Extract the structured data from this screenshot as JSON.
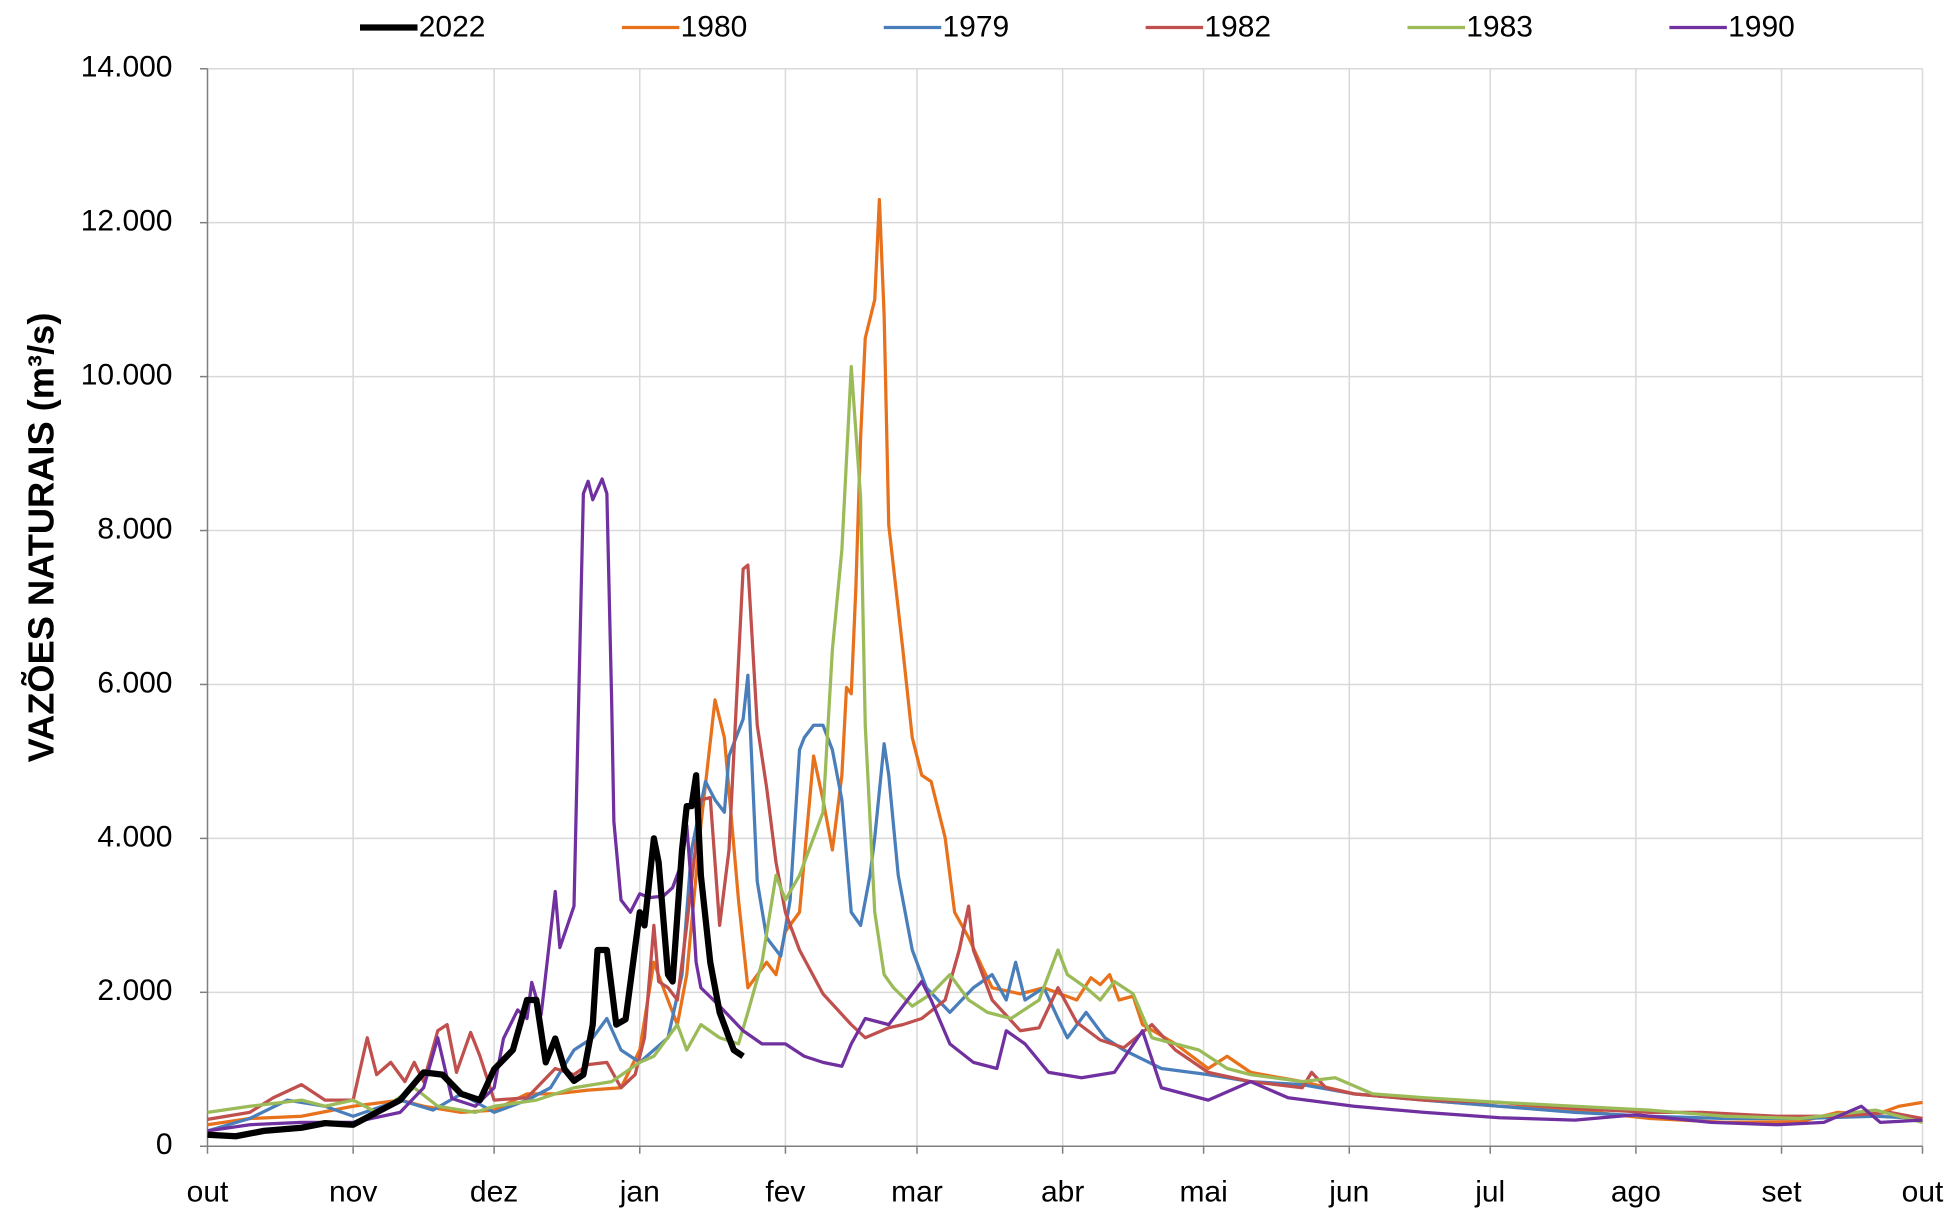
{
  "chart_data": {
    "type": "line",
    "ylabel": "VAZÕES NATURAIS (m³/s)",
    "legend": "top",
    "grid": true,
    "xlim": [
      0,
      365
    ],
    "xticks": [
      {
        "value": 0,
        "label": "out"
      },
      {
        "value": 31,
        "label": "nov"
      },
      {
        "value": 61,
        "label": "dez"
      },
      {
        "value": 92,
        "label": "jan"
      },
      {
        "value": 123,
        "label": "fev"
      },
      {
        "value": 151,
        "label": "mar"
      },
      {
        "value": 182,
        "label": "abr"
      },
      {
        "value": 212,
        "label": "mai"
      },
      {
        "value": 243,
        "label": "jun"
      },
      {
        "value": 273,
        "label": "jul"
      },
      {
        "value": 304,
        "label": "ago"
      },
      {
        "value": 335,
        "label": "set"
      },
      {
        "value": 365,
        "label": "out"
      }
    ],
    "ylim": [
      0,
      14000
    ],
    "yticks": [
      0,
      {
        "value": 2000,
        "label": "2.000"
      },
      {
        "value": 4000,
        "label": "4.000"
      },
      {
        "value": 6000,
        "label": "6.000"
      },
      {
        "value": 8000,
        "label": "8.000"
      },
      {
        "value": 10000,
        "label": "10.000"
      },
      {
        "value": 12000,
        "label": "12.000"
      },
      {
        "value": 14000,
        "label": "14.000"
      }
    ],
    "series": [
      {
        "name": "2022",
        "color": "#000000",
        "line_width": 5,
        "x": [
          0,
          6,
          12,
          20,
          25,
          31,
          36,
          41,
          46,
          50,
          54,
          58,
          61,
          65,
          68,
          70,
          72,
          74,
          76,
          78,
          80,
          82,
          83,
          85,
          87,
          89,
          92,
          93,
          95,
          96,
          98,
          99,
          101,
          102,
          103,
          104,
          105,
          107,
          109,
          111,
          112,
          114
        ],
        "values": [
          150,
          130,
          200,
          240,
          300,
          280,
          440,
          600,
          960,
          930,
          680,
          600,
          1000,
          1250,
          1900,
          1900,
          1090,
          1400,
          1000,
          850,
          930,
          1580,
          2550,
          2550,
          1580,
          1650,
          3040,
          2870,
          4000,
          3690,
          2230,
          2140,
          3850,
          4420,
          4420,
          4820,
          3520,
          2390,
          1740,
          1410,
          1250,
          1170
        ]
      },
      {
        "name": "1980",
        "color": "#e8711c",
        "line_width": 2.6,
        "x": [
          0,
          9,
          20,
          31,
          41,
          46,
          54,
          61,
          68,
          74,
          81,
          88,
          92,
          95,
          97,
          100,
          102,
          105,
          108,
          110,
          113,
          115,
          119,
          121,
          123,
          126,
          129,
          131,
          133,
          135,
          136,
          137,
          138,
          139,
          140,
          142,
          143,
          144,
          145,
          148,
          150,
          152,
          154,
          157,
          159,
          162,
          165,
          167,
          173,
          178,
          185,
          188,
          190,
          192,
          194,
          197,
          199,
          206,
          213,
          217,
          222,
          233,
          244,
          259,
          275,
          291,
          307,
          323,
          339,
          347,
          355,
          360,
          365
        ],
        "values": [
          280,
          360,
          390,
          520,
          600,
          520,
          440,
          470,
          680,
          680,
          730,
          760,
          1250,
          2390,
          2060,
          1580,
          2230,
          4170,
          5800,
          5310,
          3200,
          2060,
          2390,
          2230,
          2790,
          3040,
          5070,
          4500,
          3850,
          4820,
          5960,
          5880,
          7260,
          9210,
          10500,
          11000,
          12300,
          10800,
          8070,
          6450,
          5310,
          4820,
          4740,
          4010,
          3040,
          2710,
          2310,
          2060,
          1980,
          2060,
          1900,
          2190,
          2100,
          2230,
          1900,
          1950,
          1580,
          1330,
          1010,
          1170,
          960,
          840,
          680,
          600,
          520,
          470,
          360,
          310,
          320,
          440,
          410,
          520,
          570
        ]
      },
      {
        "name": "1979",
        "color": "#4a7ebb",
        "line_width": 2.6,
        "x": [
          0,
          9,
          17,
          25,
          31,
          41,
          48,
          54,
          61,
          68,
          73,
          78,
          82,
          85,
          88,
          92,
          95,
          98,
          101,
          103,
          106,
          108,
          110,
          111,
          114,
          115,
          117,
          119,
          122,
          124,
          126,
          127,
          129,
          131,
          133,
          135,
          137,
          139,
          141,
          142,
          144,
          145,
          147,
          150,
          153,
          158,
          163,
          167,
          170,
          172,
          174,
          178,
          181,
          183,
          187,
          191,
          195,
          203,
          213,
          222,
          233,
          244,
          259,
          275,
          291,
          307,
          323,
          339,
          355,
          365
        ],
        "values": [
          200,
          360,
          600,
          520,
          390,
          600,
          470,
          680,
          440,
          600,
          760,
          1250,
          1410,
          1660,
          1250,
          1090,
          1250,
          1410,
          2230,
          3850,
          4740,
          4500,
          4340,
          5070,
          5550,
          6120,
          3440,
          2710,
          2470,
          3200,
          5150,
          5310,
          5470,
          5470,
          5150,
          4500,
          3040,
          2870,
          3520,
          4010,
          5230,
          4820,
          3520,
          2550,
          2060,
          1740,
          2060,
          2230,
          1900,
          2390,
          1900,
          2060,
          1660,
          1410,
          1740,
          1410,
          1250,
          1010,
          930,
          840,
          800,
          680,
          600,
          520,
          440,
          390,
          360,
          360,
          390,
          360
        ]
      },
      {
        "name": "1982",
        "color": "#c0504d",
        "line_width": 2.6,
        "x": [
          0,
          9,
          14,
          20,
          25,
          31,
          34,
          36,
          39,
          42,
          44,
          46,
          49,
          51,
          53,
          56,
          58,
          61,
          68,
          74,
          78,
          81,
          85,
          88,
          91,
          93,
          95,
          96,
          98,
          100,
          102,
          105,
          107,
          109,
          111,
          114,
          115,
          117,
          119,
          121,
          123,
          126,
          131,
          137,
          140,
          145,
          148,
          152,
          157,
          160,
          162,
          163,
          167,
          173,
          177,
          181,
          185,
          190,
          195,
          201,
          206,
          213,
          222,
          233,
          235,
          238,
          244,
          259,
          275,
          291,
          307,
          318,
          334,
          347,
          358,
          365
        ],
        "values": [
          350,
          440,
          630,
          800,
          600,
          600,
          1410,
          930,
          1090,
          840,
          1090,
          840,
          1500,
          1580,
          960,
          1480,
          1170,
          600,
          630,
          1010,
          930,
          1060,
          1090,
          760,
          930,
          1410,
          2870,
          2140,
          2060,
          1900,
          2870,
          4500,
          4530,
          2870,
          3850,
          7500,
          7550,
          5470,
          4660,
          3690,
          3040,
          2550,
          1980,
          1580,
          1410,
          1540,
          1580,
          1660,
          1900,
          2550,
          3120,
          2550,
          1900,
          1500,
          1540,
          2060,
          1610,
          1380,
          1280,
          1580,
          1250,
          960,
          840,
          760,
          960,
          760,
          680,
          600,
          570,
          490,
          440,
          440,
          390,
          390,
          440,
          360
        ]
      },
      {
        "name": "1983",
        "color": "#9bbb59",
        "line_width": 2.6,
        "x": [
          0,
          9,
          20,
          25,
          31,
          36,
          44,
          49,
          57,
          61,
          70,
          78,
          86,
          92,
          95,
          100,
          102,
          105,
          109,
          113,
          115,
          118,
          121,
          123,
          126,
          129,
          131,
          133,
          135,
          137,
          139,
          140,
          142,
          144,
          146,
          150,
          154,
          158,
          162,
          166,
          171,
          177,
          181,
          183,
          187,
          190,
          193,
          197,
          201,
          206,
          211,
          217,
          222,
          233,
          240,
          248,
          259,
          275,
          291,
          307,
          323,
          339,
          355,
          365
        ],
        "values": [
          440,
          520,
          600,
          520,
          600,
          440,
          760,
          520,
          440,
          520,
          600,
          760,
          840,
          1090,
          1170,
          1580,
          1250,
          1580,
          1410,
          1330,
          1740,
          2390,
          3520,
          3200,
          3520,
          4010,
          4340,
          6450,
          7750,
          10130,
          8420,
          5470,
          3040,
          2230,
          2060,
          1820,
          1980,
          2230,
          1900,
          1740,
          1660,
          1900,
          2550,
          2230,
          2060,
          1900,
          2140,
          1980,
          1410,
          1330,
          1250,
          1010,
          930,
          840,
          890,
          680,
          630,
          570,
          520,
          470,
          390,
          360,
          470,
          310
        ]
      },
      {
        "name": "1990",
        "color": "#7030a0",
        "line_width": 2.6,
        "x": [
          0,
          9,
          20,
          31,
          41,
          46,
          49,
          52,
          57,
          61,
          63,
          66,
          68,
          69,
          71,
          74,
          75,
          78,
          80,
          81,
          82,
          84,
          85,
          86,
          86.5,
          88,
          90,
          92,
          94,
          97,
          99,
          101,
          102,
          103,
          104,
          105,
          109,
          114,
          118,
          123,
          127,
          131,
          135,
          137,
          140,
          145,
          148,
          152,
          154,
          158,
          163,
          168,
          170,
          174,
          179,
          186,
          193,
          199,
          203,
          213,
          222,
          230,
          244,
          259,
          275,
          291,
          304,
          320,
          334,
          344,
          352,
          356,
          365
        ],
        "values": [
          200,
          280,
          310,
          310,
          440,
          760,
          1410,
          620,
          520,
          760,
          1400,
          1770,
          1660,
          2130,
          1710,
          3310,
          2580,
          3120,
          8480,
          8640,
          8400,
          8670,
          8480,
          5800,
          4220,
          3200,
          3040,
          3280,
          3230,
          3250,
          3360,
          3690,
          4170,
          3360,
          2390,
          2060,
          1820,
          1500,
          1330,
          1330,
          1170,
          1090,
          1040,
          1330,
          1660,
          1580,
          1820,
          2140,
          1900,
          1330,
          1090,
          1010,
          1500,
          1330,
          960,
          890,
          960,
          1500,
          760,
          600,
          840,
          630,
          520,
          440,
          370,
          340,
          410,
          310,
          280,
          310,
          520,
          310,
          340
        ]
      }
    ]
  }
}
